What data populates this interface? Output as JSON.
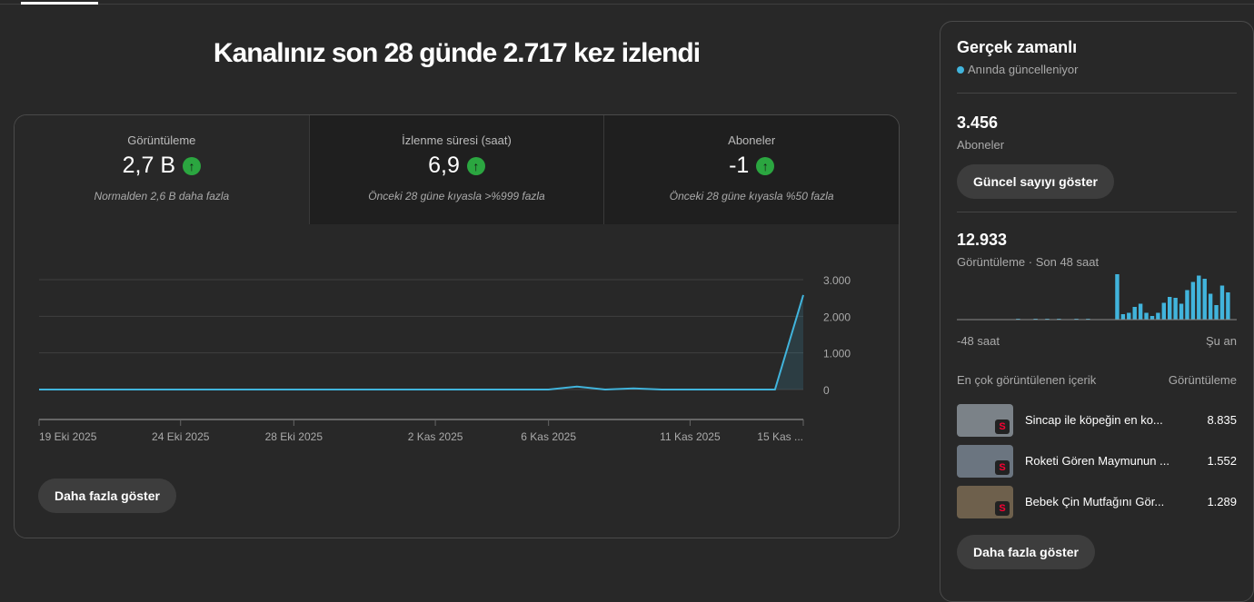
{
  "title": "Kanalınız son 28 günde 2.717 kez izlendi",
  "metrics": [
    {
      "label": "Görüntüleme",
      "value": "2,7 B",
      "note": "Normalden 2,6 B daha fazla",
      "trend": "up"
    },
    {
      "label": "İzlenme süresi (saat)",
      "value": "6,9",
      "note": "Önceki 28 güne kıyasla >%999 fazla",
      "trend": "up"
    },
    {
      "label": "Aboneler",
      "value": "-1",
      "note": "Önceki 28 güne kıyasla %50 fazla",
      "trend": "up"
    }
  ],
  "more_label": "Daha fazla göster",
  "chart_data": {
    "type": "line",
    "x": [
      "19 Eki",
      "20 Eki",
      "21 Eki",
      "22 Eki",
      "23 Eki",
      "24 Eki",
      "25 Eki",
      "26 Eki",
      "27 Eki",
      "28 Eki",
      "29 Eki",
      "30 Eki",
      "31 Eki",
      "1 Kas",
      "2 Kas",
      "3 Kas",
      "4 Kas",
      "5 Kas",
      "6 Kas",
      "7 Kas",
      "8 Kas",
      "9 Kas",
      "10 Kas",
      "11 Kas",
      "12 Kas",
      "13 Kas",
      "14 Kas",
      "15 Kas"
    ],
    "values": [
      0,
      0,
      0,
      0,
      0,
      0,
      0,
      0,
      0,
      0,
      0,
      0,
      0,
      0,
      0,
      0,
      0,
      0,
      0,
      80,
      0,
      30,
      0,
      0,
      0,
      0,
      0,
      2580
    ],
    "x_tick_labels": [
      "19 Eki 2025",
      "24 Eki 2025",
      "28 Eki 2025",
      "2 Kas 2025",
      "6 Kas 2025",
      "11 Kas 2025",
      "15 Kas ..."
    ],
    "y_tick_labels": [
      "0",
      "1.000",
      "2.000",
      "3.000"
    ],
    "ylim": [
      0,
      3000
    ],
    "grid": true,
    "color": "#41b4dc"
  },
  "realtime": {
    "title": "Gerçek zamanlı",
    "status": "Anında güncelleniyor",
    "subs_value": "3.456",
    "subs_label": "Aboneler",
    "show_button": "Güncel sayıyı göster",
    "views_value": "12.933",
    "views_label": "Görüntüleme · Son 48 saat",
    "axis_start": "-48 saat",
    "axis_end": "Şu an",
    "hourly_bars": [
      0,
      0,
      0,
      0,
      0,
      0,
      0,
      0,
      0,
      0,
      2,
      0,
      0,
      2,
      0,
      2,
      0,
      2,
      0,
      0,
      2,
      0,
      2,
      0,
      0,
      0,
      0,
      100,
      12,
      15,
      28,
      35,
      15,
      8,
      15,
      37,
      50,
      48,
      35,
      65,
      83,
      97,
      90,
      57,
      32,
      75,
      60,
      0
    ],
    "top_header": "En çok görüntülenen içerik",
    "top_col": "Görüntüleme",
    "top": [
      {
        "title": "Sincap ile köpeğin en ko...",
        "views": "8.835",
        "thumb": "#7b8288"
      },
      {
        "title": "Roketi Gören Maymunun ...",
        "views": "1.552",
        "thumb": "#6b7580"
      },
      {
        "title": "Bebek Çin Mutfağını Gör...",
        "views": "1.289",
        "thumb": "#6e604c"
      }
    ],
    "more_label": "Daha fazla göster"
  }
}
